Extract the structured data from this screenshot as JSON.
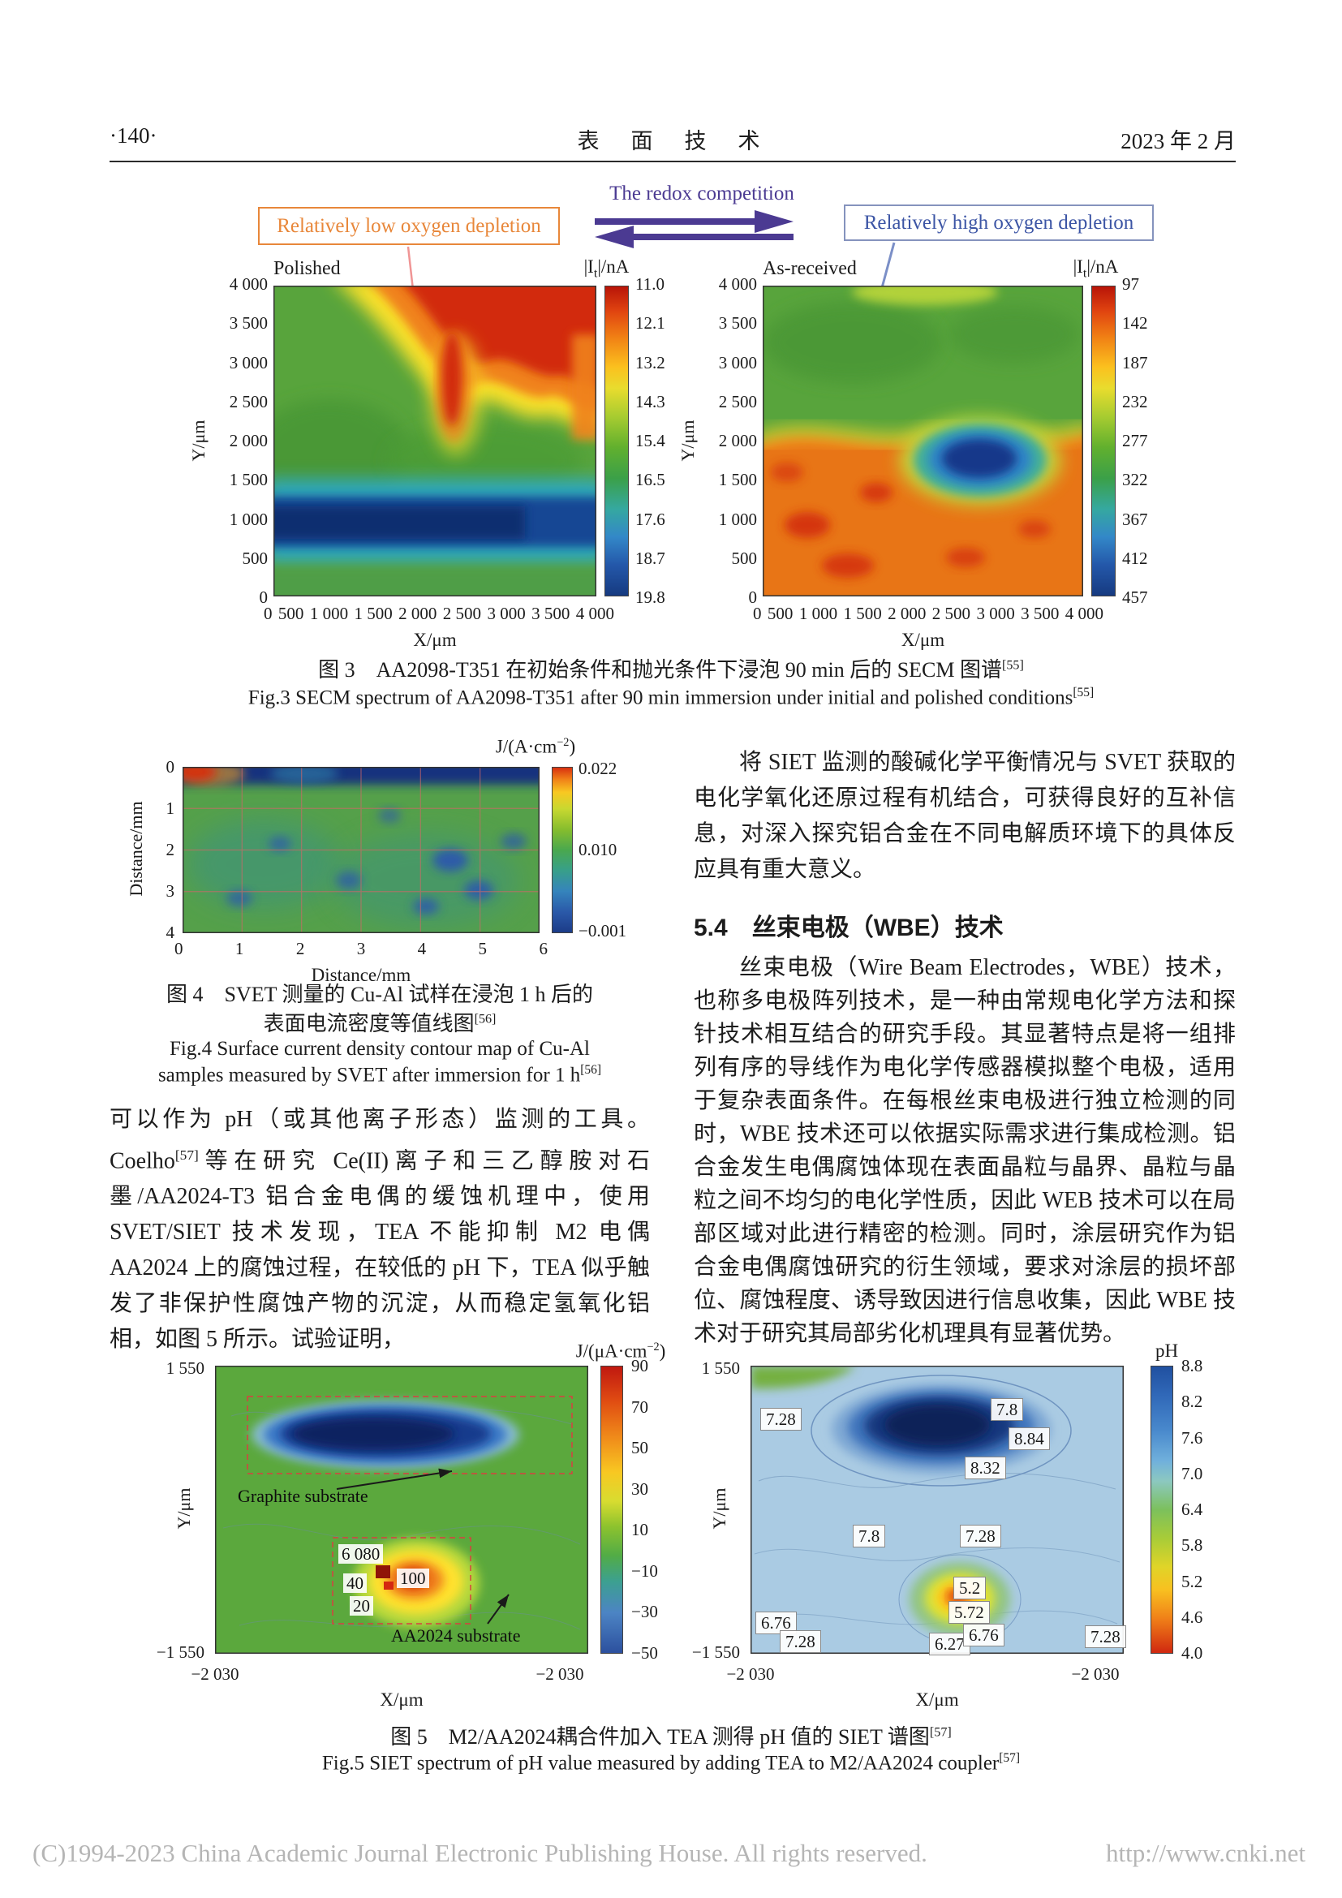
{
  "colors": {
    "purple": "#4b3a92",
    "orange": "#e8873a",
    "box_blue": "#8593bd",
    "box_blue_text": "#3c55a5",
    "footer_gray": "#b5b5b5"
  },
  "header": {
    "page_no": "·140·",
    "journal": "表　面　技　术",
    "date": "2023 年 2 月"
  },
  "fig3": {
    "redox_label": "The redox competition",
    "low_box": "Relatively low oxygen depletion",
    "high_box": "Relatively high oxygen depletion",
    "cb_title": {
      "pre": "|I",
      "sub": "t",
      "post": "|/nA"
    },
    "left": {
      "title": "Polished",
      "cb_ticks": [
        "11.0",
        "12.1",
        "13.2",
        "14.3",
        "15.4",
        "16.5",
        "17.6",
        "18.7",
        "19.8"
      ],
      "y_ticks": [
        "4 000",
        "3 500",
        "3 000",
        "2 500",
        "2 000",
        "1 500",
        "1 000",
        "500",
        "0"
      ],
      "x_ticks": [
        "0",
        "500",
        "1 000",
        "1 500",
        "2 000",
        "2 500",
        "3 000",
        "3 500",
        "4 000"
      ],
      "xlabel": "X/μm",
      "ylabel": "Y/μm"
    },
    "right": {
      "title": "As-received",
      "cb_ticks": [
        "97",
        "142",
        "187",
        "232",
        "277",
        "322",
        "367",
        "412",
        "457"
      ],
      "y_ticks": [
        "4 000",
        "3 500",
        "3 000",
        "2 500",
        "2 000",
        "1 500",
        "1 000",
        "500",
        "0"
      ],
      "x_ticks": [
        "0",
        "500",
        "1 000",
        "1 500",
        "2 000",
        "2 500",
        "3 000",
        "3 500",
        "4 000"
      ],
      "xlabel": "X/μm",
      "ylabel": "Y/μm"
    },
    "caption_cn": "图 3　AA2098-T351 在初始条件和抛光条件下浸泡 90 min 后的 SECM 图谱",
    "caption_cn_ref": "[55]",
    "caption_en": "Fig.3 SECM spectrum of AA2098-T351 after 90 min immersion under initial and polished conditions",
    "caption_en_ref": "[55]"
  },
  "fig4": {
    "cb_title": {
      "pre": "J/(A·cm",
      "sup": "−2",
      "post": ")"
    },
    "cb_ticks": [
      "0.022",
      "0.010",
      "−0.001"
    ],
    "y_ticks": [
      "0",
      "1",
      "2",
      "3",
      "4"
    ],
    "x_ticks": [
      "0",
      "1",
      "2",
      "3",
      "4",
      "5",
      "6"
    ],
    "xlabel": "Distance/mm",
    "ylabel": "Distance/mm",
    "caption_cn_1": "图 4　SVET 测量的 Cu-Al 试样在浸泡 1 h 后的",
    "caption_cn_2": "表面电流密度等值线图",
    "caption_cn_ref": "[56]",
    "caption_en_1": "Fig.4 Surface current density contour map of Cu-Al",
    "caption_en_2": "samples measured by SVET after immersion for 1 h",
    "caption_en_ref": "[56]"
  },
  "left_column": {
    "para_part1": "可以作为 pH（或其他离子形态）监测的工具。Coelho",
    "para_ref": "[57]",
    "para_part2": "等在研究 Ce(II)离子和三乙醇胺对石墨/AA2024-T3 铝合金电偶的缓蚀机理中，使用 SVET/SIET 技术发现，TEA 不能抑制 M2 电偶 AA2024 上的腐蚀过程，在较低的 pH 下，TEA 似乎触发了非保护性腐蚀产物的沉淀，从而稳定氢氧化铝相，如图 5 所示。试验证明，"
  },
  "right_column": {
    "para1": "将 SIET 监测的酸碱化学平衡情况与 SVET 获取的电化学氧化还原过程有机结合，可获得良好的互补信息，对深入探究铝合金在不同电解质环境下的具体反应具有重大意义。",
    "heading": "5.4　丝束电极（WBE）技术",
    "para2": "丝束电极（Wire Beam Electrodes，WBE）技术，也称多电极阵列技术，是一种由常规电化学方法和探针技术相互结合的研究手段。其显著特点是将一组排列有序的导线作为电化学传感器模拟整个电极，适用于复杂表面条件。在每根丝束电极进行独立检测的同时，WBE 技术还可以依据实际需求进行集成检测。铝合金发生电偶腐蚀体现在表面晶粒与晶界、晶粒与晶粒之间不均匀的电化学性质，因此 WEB 技术可以在局部区域对此进行精密的检测。同时，涂层研究作为铝合金电偶腐蚀研究的衍生领域，要求对涂层的损坏部位、腐蚀程度、诱导致因进行信息收集，因此 WBE 技术对于研究其局部劣化机理具有显著优势。"
  },
  "fig5": {
    "left": {
      "cb_title": {
        "pre": "J/(μA·cm",
        "sup": "−2",
        "post": ")"
      },
      "cb_ticks": [
        "90",
        "70",
        "50",
        "30",
        "10",
        "−10",
        "−30",
        "−50"
      ],
      "y_top": "1 550",
      "y_bottom": "−1 550",
      "x_left": "−2 030",
      "x_right": "−2 030",
      "xlabel": "X/μm",
      "ylabel": "Y/μm",
      "ann_graphite": "Graphite substrate",
      "ann_aa2024": "AA2024 substrate",
      "ann_values": [
        "6 080",
        "100",
        "40",
        "20"
      ]
    },
    "right": {
      "cb_title": "pH",
      "cb_ticks": [
        "8.8",
        "8.2",
        "7.6",
        "7.0",
        "6.4",
        "5.8",
        "5.2",
        "4.6",
        "4.0"
      ],
      "y_top": "1 550",
      "y_bottom": "−1 550",
      "x_left": "−2 030",
      "x_right": "−2 030",
      "xlabel": "X/μm",
      "ylabel": "Y/μm",
      "annotations": [
        "7.28",
        "7.8",
        "8.84",
        "8.32",
        "7.8",
        "7.28",
        "5.2",
        "5.72",
        "6.76",
        "6.27",
        "6.76",
        "7.28",
        "7.28"
      ]
    },
    "caption_cn": "图 5　M2/AA2024耦合件加入 TEA 测得 pH 值的 SIET 谱图",
    "caption_cn_ref": "[57]",
    "caption_en": "Fig.5 SIET spectrum of pH value measured by adding TEA to M2/AA2024 coupler",
    "caption_en_ref": "[57]"
  },
  "footer": {
    "copyright": "(C)1994-2023 China Academic Journal Electronic Publishing House. All rights reserved.",
    "url": "http://www.cnki.net"
  }
}
